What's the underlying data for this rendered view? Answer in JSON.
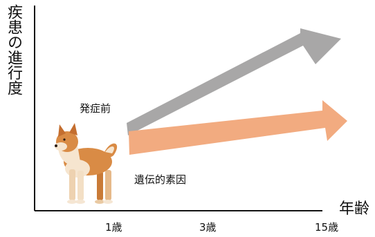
{
  "axes": {
    "y_label": "疾患の進行度",
    "x_label": "年齢"
  },
  "x_ticks": [
    "1歳",
    "3歳",
    "15歳"
  ],
  "labels": {
    "pre_onset": "発症前",
    "genetic_factor": "遺伝的素因"
  },
  "arrows": [
    {
      "name": "gray-arrow",
      "color": "#a8a7a7"
    },
    {
      "name": "orange-arrow",
      "color": "#f2ab80"
    }
  ],
  "image": {
    "subject": "shiba-inu-dog"
  }
}
